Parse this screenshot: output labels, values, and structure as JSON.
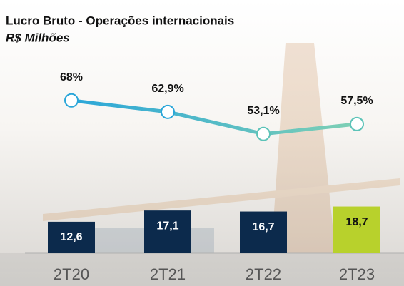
{
  "chart_data": {
    "type": "bar",
    "title": "Lucro Bruto - Operações internacionais",
    "subtitle": "R$ Milhões",
    "categories": [
      "2T20",
      "2T21",
      "2T22",
      "2T23"
    ],
    "series": [
      {
        "type": "bar",
        "values": [
          12.6,
          17.1,
          16.7,
          18.7
        ],
        "value_labels": [
          "12,6",
          "17,1",
          "16,7",
          "18,7"
        ],
        "colors": [
          "#0c2a4c",
          "#0c2a4c",
          "#0c2a4c",
          "#b8d12c"
        ]
      },
      {
        "type": "line",
        "axis": "y2",
        "values": [
          68,
          62.9,
          53.1,
          57.5
        ],
        "value_labels": [
          "68%",
          "62,9%",
          "53,1%",
          "57,5%"
        ],
        "color": "#2aa6d9"
      }
    ],
    "ylim": [
      0,
      90
    ],
    "y2lim": [
      0,
      100
    ]
  }
}
